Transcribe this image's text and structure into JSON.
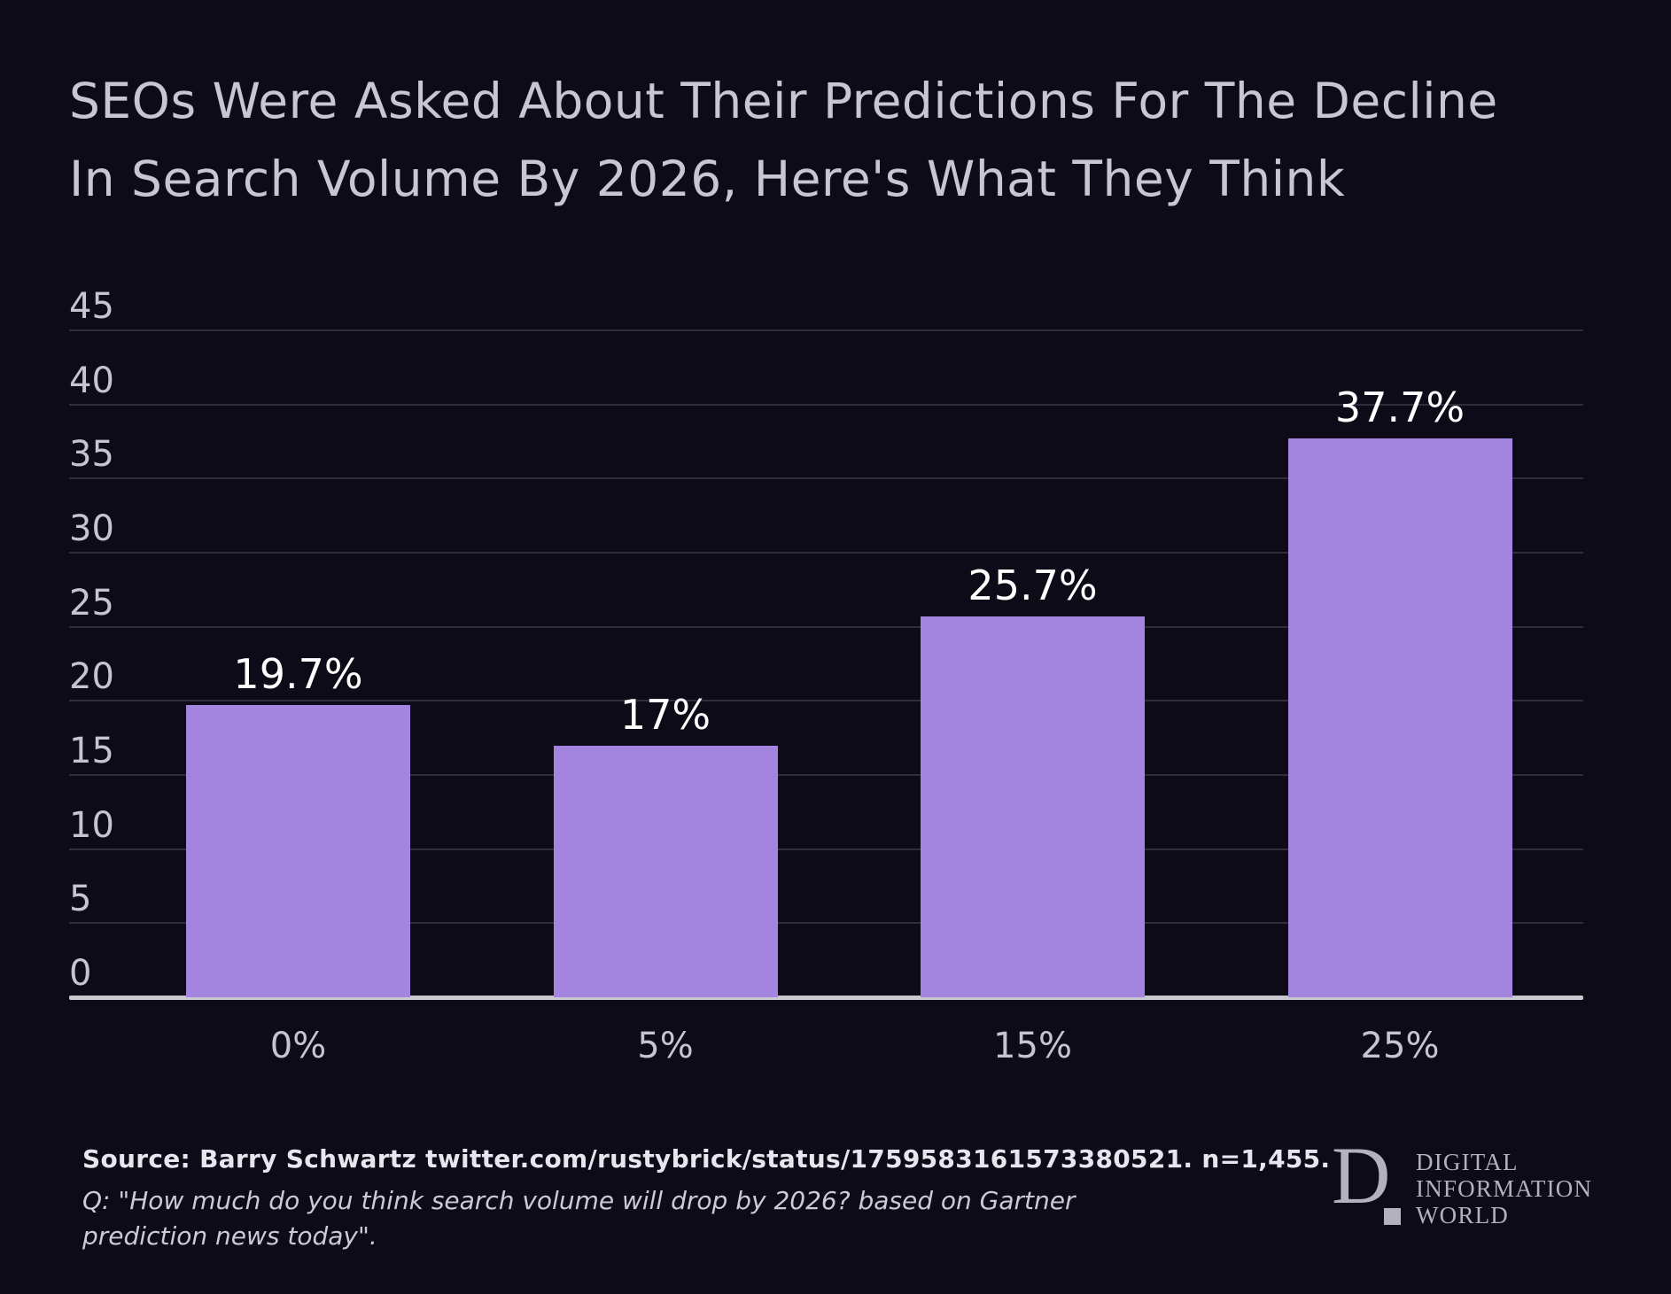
{
  "page": {
    "background": "#0d0b18"
  },
  "title": {
    "full": "SEOs Were Asked About Their Predictions For The Decline In Search Volume By 2026, Here's What They Think",
    "line1": "SEOs Were Asked About Their Predictions For The Decline",
    "line2": "In Search Volume By 2026, Here's What They Think"
  },
  "chart_data": {
    "type": "bar",
    "title": "SEOs Were Asked About Their Predictions For The Decline In Search Volume By 2026, Here's What They Think",
    "categories": [
      "0%",
      "5%",
      "15%",
      "25%"
    ],
    "values": [
      19.7,
      17,
      25.7,
      37.7
    ],
    "value_labels": [
      "19.7%",
      "17%",
      "25.7%",
      "37.7%"
    ],
    "xlabel": "",
    "ylabel": "",
    "ylim": [
      0,
      45
    ],
    "yticks": [
      0,
      5,
      10,
      15,
      20,
      25,
      30,
      35,
      40,
      45
    ],
    "grid": "horizontal",
    "legend": "none",
    "bar_color": "#a384de"
  },
  "footer": {
    "source": "Source: Barry Schwartz twitter.com/rustybrick/status/1759583161573380521. n=1,455.",
    "question": "Q: \"How much do you think search volume will drop by 2026? based on Gartner prediction news today\"."
  },
  "logo": {
    "monogram": "D",
    "line1": "DIGITAL",
    "line2": "INFORMATION",
    "line3": "WORLD"
  },
  "colors": {
    "background": "#0d0b18",
    "bar": "#a384de",
    "gridline": "#2f2c3b",
    "axis": "#c9c8cf",
    "tick_label": "#c7c4d0",
    "value_label": "#ffffff",
    "title": "#c9c5d3",
    "source_text": "#e7e5ed",
    "question_text": "#cdcad7",
    "logo": "#b4b1bd"
  }
}
